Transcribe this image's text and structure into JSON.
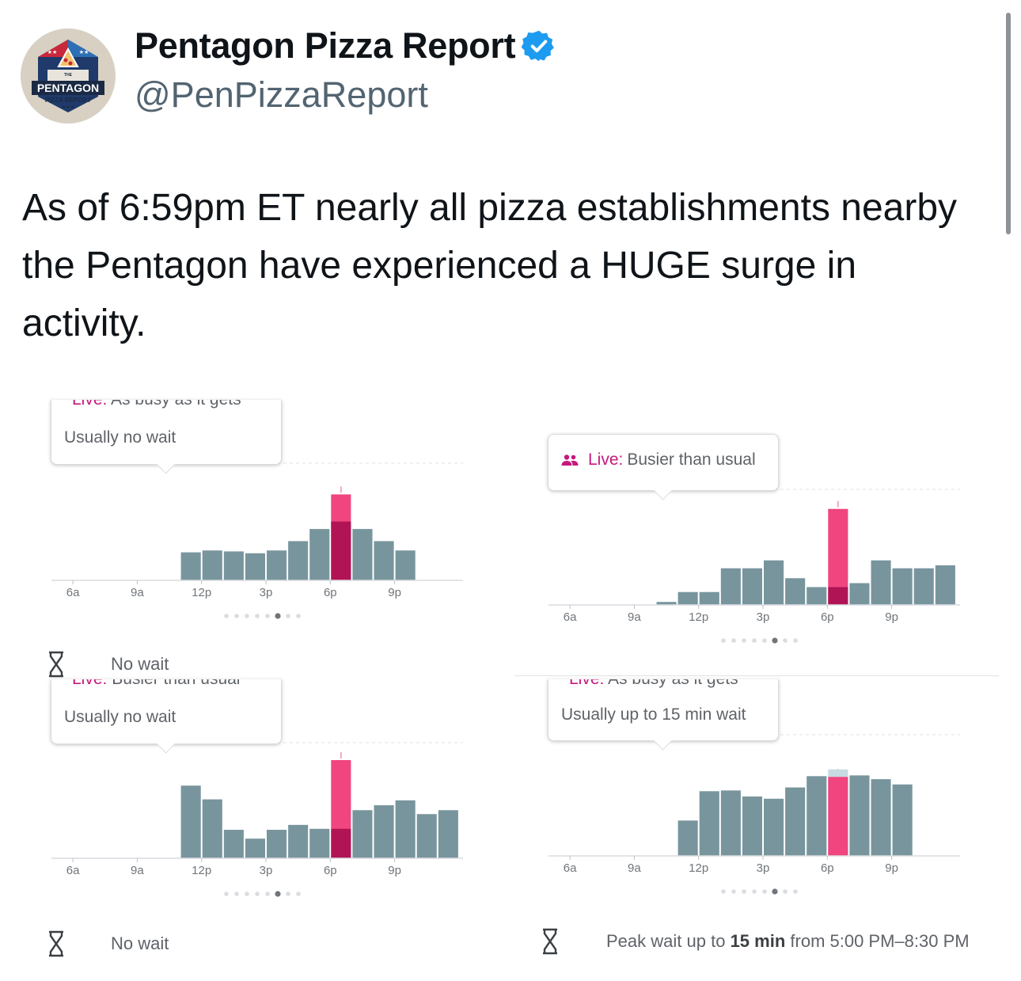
{
  "profile": {
    "display_name": "Pentagon Pizza Report",
    "handle": "@PenPizzaReport",
    "verified": true,
    "avatar_icon": "pentagon-pizza-logo",
    "avatar_text": [
      "THE",
      "PENTAGON",
      "PIZZA REPORT"
    ]
  },
  "tweet": {
    "text": "As of 6:59pm ET nearly all pizza establishments nearby the Pentagon have experienced a HUGE surge in activity."
  },
  "colors": {
    "bar": "#78959d",
    "live_pink": "#f0457f",
    "live_dark": "#b01454",
    "live_light": "#c7dbe3",
    "accent_text": "#c5197d"
  },
  "panels": [
    {
      "tooltip": {
        "live_label": "Live:",
        "live_status": "As busy as it gets",
        "sub": "Usually no wait"
      },
      "wait_icon": "hourglass-icon",
      "wait_text": "No wait"
    },
    {
      "tooltip": {
        "live_label": "Live:",
        "live_status": "Busier than usual",
        "sub": ""
      },
      "wait_icon": "",
      "wait_text": ""
    },
    {
      "tooltip": {
        "live_label": "Live:",
        "live_status": "Busier than usual",
        "sub": "Usually no wait"
      },
      "wait_icon": "hourglass-icon",
      "wait_text": "No wait"
    },
    {
      "tooltip": {
        "live_label": "Live:",
        "live_status": "As busy as it gets",
        "sub": "Usually up to 15 min wait"
      },
      "wait_icon": "hourglass-icon",
      "wait_prefix": "Peak wait up to",
      "wait_strong": "15 min",
      "wait_suffix": "from 5:00 PM–8:30 PM"
    }
  ],
  "chart_data": [
    {
      "type": "bar",
      "title": "",
      "tick_labels": [
        "6a",
        "9a",
        "12p",
        "3p",
        "6p",
        "9p"
      ],
      "hours": [
        5,
        6,
        7,
        8,
        9,
        10,
        11,
        12,
        13,
        14,
        15,
        16,
        17,
        18,
        19,
        20,
        21,
        22,
        23
      ],
      "usual": [
        0,
        0,
        0,
        0,
        0,
        0,
        0.3,
        0.32,
        0.31,
        0.29,
        0.32,
        0.42,
        0.55,
        0.63,
        0.55,
        0.42,
        0.32,
        0,
        0
      ],
      "live_hour": 18,
      "live_value": 0.92,
      "pagination": {
        "count": 8,
        "active": 5
      }
    },
    {
      "type": "bar",
      "title": "",
      "tick_labels": [
        "6a",
        "9a",
        "12p",
        "3p",
        "6p",
        "9p"
      ],
      "hours": [
        5,
        6,
        7,
        8,
        9,
        10,
        11,
        12,
        13,
        14,
        15,
        16,
        17,
        18,
        19,
        20,
        21,
        22,
        23
      ],
      "usual": [
        0,
        0,
        0,
        0,
        0,
        0.03,
        0.13,
        0.13,
        0.37,
        0.37,
        0.45,
        0.27,
        0.18,
        0.18,
        0.22,
        0.45,
        0.37,
        0.37,
        0.4
      ],
      "live_hour": 18,
      "live_value": 0.97,
      "pagination": {
        "count": 8,
        "active": 5
      }
    },
    {
      "type": "bar",
      "title": "",
      "tick_labels": [
        "6a",
        "9a",
        "12p",
        "3p",
        "6p",
        "9p"
      ],
      "hours": [
        5,
        6,
        7,
        8,
        9,
        10,
        11,
        12,
        13,
        14,
        15,
        16,
        17,
        18,
        19,
        20,
        21,
        22,
        23
      ],
      "usual": [
        0,
        0,
        0,
        0,
        0,
        0,
        0.74,
        0.6,
        0.29,
        0.2,
        0.29,
        0.34,
        0.3,
        0.3,
        0.49,
        0.54,
        0.59,
        0.45,
        0.49
      ],
      "live_hour": 18,
      "live_value": 1.0,
      "pagination": {
        "count": 8,
        "active": 5
      }
    },
    {
      "type": "bar",
      "title": "",
      "tick_labels": [
        "6a",
        "9a",
        "12p",
        "3p",
        "6p",
        "9p"
      ],
      "hours": [
        5,
        6,
        7,
        8,
        9,
        10,
        11,
        12,
        13,
        14,
        15,
        16,
        17,
        18,
        19,
        20,
        21,
        22,
        23
      ],
      "usual": [
        0,
        0,
        0,
        0,
        0,
        0,
        0.47,
        0.86,
        0.87,
        0.79,
        0.76,
        0.91,
        1.06,
        1.15,
        1.07,
        1.02,
        0.95,
        0,
        0
      ],
      "live_hour": 18,
      "live_value": 1.05,
      "pagination": {
        "count": 8,
        "active": 5
      }
    }
  ]
}
